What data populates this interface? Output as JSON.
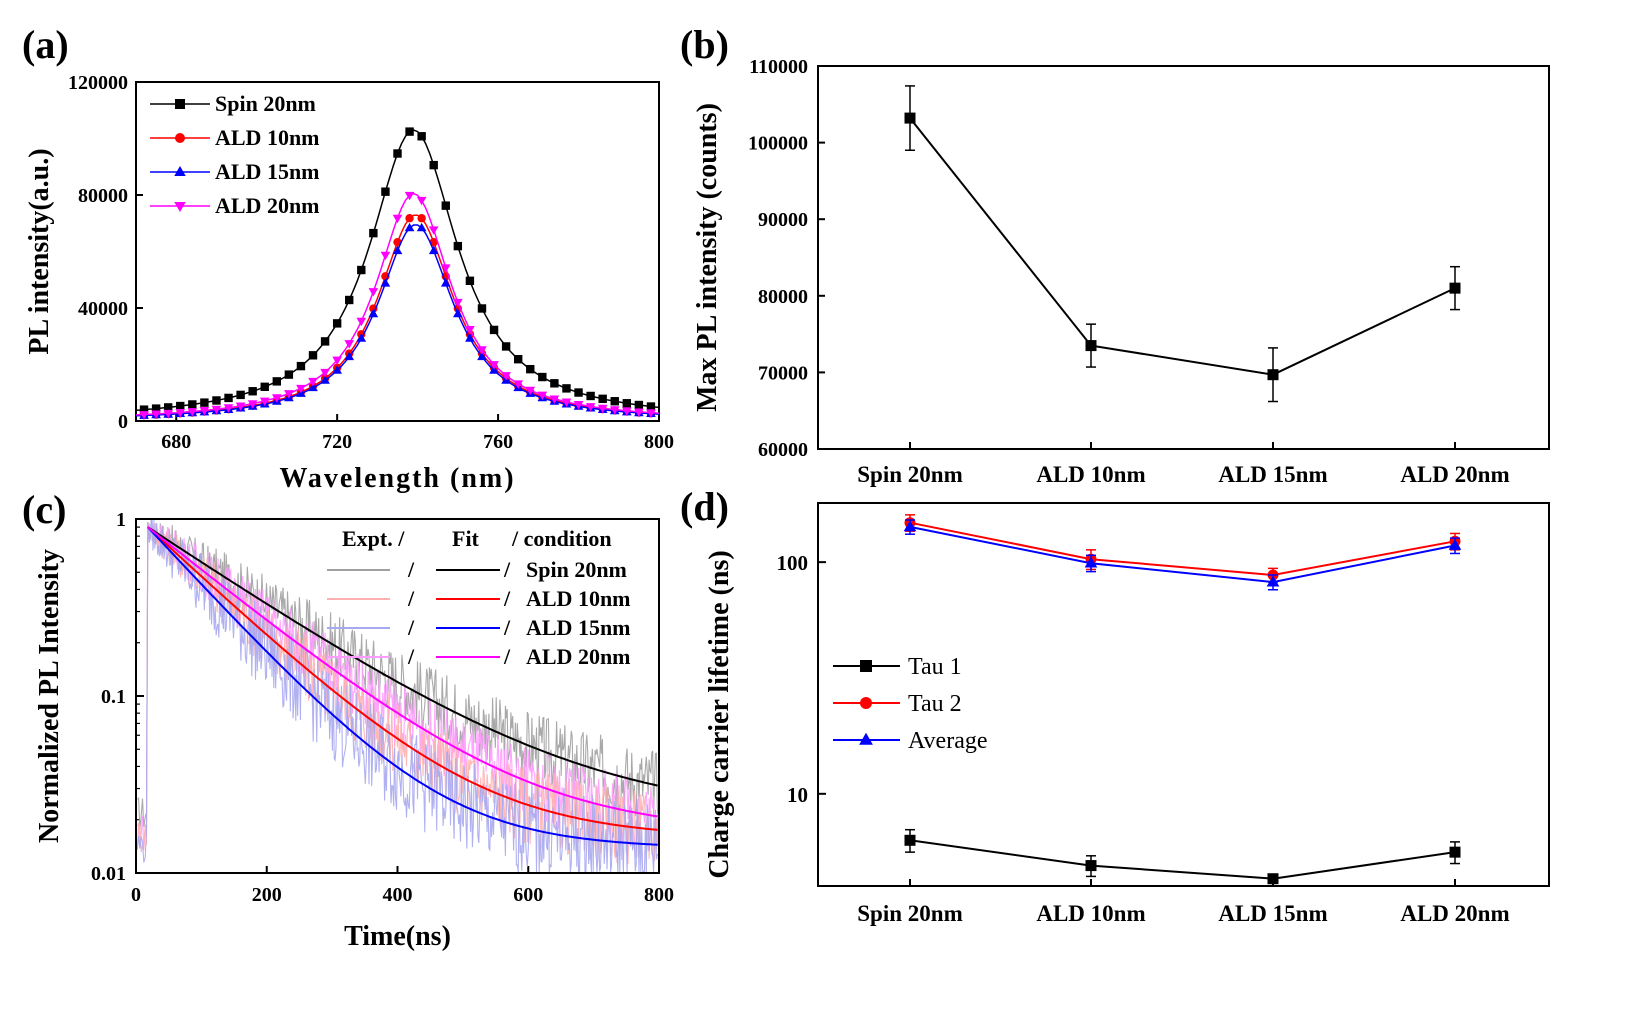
{
  "panel_labels": [
    "(a)",
    "(b)",
    "(c)",
    "(d)"
  ],
  "chart_data": [
    {
      "id": "a",
      "type": "line",
      "xlabel": "Wavelength (nm)",
      "ylabel": "PL intensity(a.u.)",
      "xlim": [
        670,
        800
      ],
      "ylim": [
        0,
        120000
      ],
      "xticks": [
        680,
        720,
        760,
        800
      ],
      "yticks": [
        0,
        40000,
        80000,
        120000
      ],
      "legend_position": "top-left",
      "series": [
        {
          "name": "Spin 20nm",
          "marker": "square",
          "color": "#000000",
          "peak_x": 739,
          "peak_y": 103000,
          "width": 13.5,
          "baseline": 0
        },
        {
          "name": "ALD 10nm",
          "marker": "circle",
          "color": "#ff0000",
          "peak_x": 739.5,
          "peak_y": 73000,
          "width": 11.5,
          "baseline": 0
        },
        {
          "name": "ALD 15nm",
          "marker": "triangle-up",
          "color": "#0000ff",
          "peak_x": 739.5,
          "peak_y": 69500,
          "width": 11.5,
          "baseline": 0
        },
        {
          "name": "ALD 20nm",
          "marker": "triangle-down",
          "color": "#ff00ff",
          "peak_x": 739,
          "peak_y": 80500,
          "width": 11.5,
          "baseline": 0
        }
      ]
    },
    {
      "id": "b",
      "type": "line",
      "xlabel": "",
      "ylabel": "Max PL intensity (counts)",
      "categories": [
        "Spin 20nm",
        "ALD 10nm",
        "ALD 15nm",
        "ALD 20nm"
      ],
      "ylim": [
        60000,
        110000
      ],
      "yticks": [
        60000,
        70000,
        80000,
        90000,
        100000,
        110000
      ],
      "series": [
        {
          "name": "",
          "marker": "square",
          "color": "#000000",
          "values": [
            103200,
            73500,
            69700,
            81000
          ],
          "errors": [
            4200,
            2800,
            3500,
            2800
          ]
        }
      ]
    },
    {
      "id": "c",
      "type": "line",
      "xlabel": "Time(ns)",
      "ylabel": "Normalized PL Intensity",
      "xlim": [
        0,
        800
      ],
      "ylim": [
        0.01,
        1
      ],
      "yscale": "log",
      "xticks": [
        0,
        200,
        400,
        600,
        800
      ],
      "yticks": [
        0.01,
        0.1,
        1
      ],
      "ytick_labels": [
        "0.01",
        "0.1",
        "1"
      ],
      "legend_header": [
        "Expt. /",
        "Fit",
        "/ condition"
      ],
      "legend_slash": "/",
      "legend_position": "top-right",
      "series": [
        {
          "name": "Spin 20nm",
          "fit_color": "#000000",
          "expt_color": "#a0a0a0",
          "floor": 0.021,
          "tau": 175,
          "noise": 0.14
        },
        {
          "name": "ALD 10nm",
          "fit_color": "#ff0000",
          "expt_color": "#ffb0b0",
          "floor": 0.0158,
          "tau": 125,
          "noise": 0.15
        },
        {
          "name": "ALD 15nm",
          "fit_color": "#0000ff",
          "expt_color": "#a8a8f0",
          "floor": 0.0138,
          "tau": 108,
          "noise": 0.18
        },
        {
          "name": "ALD 20nm",
          "fit_color": "#ff00ff",
          "expt_color": "#ff9cff",
          "floor": 0.0168,
          "tau": 145,
          "noise": 0.14
        }
      ]
    },
    {
      "id": "d",
      "type": "line",
      "xlabel": "",
      "ylabel": "Charge carrier lifetime (ns)",
      "yscale": "log",
      "ylim": [
        4,
        180
      ],
      "yticks": [
        10,
        100
      ],
      "ytick_labels": [
        "10",
        "100"
      ],
      "categories": [
        "Spin 20nm",
        "ALD 10nm",
        "ALD 15nm",
        "ALD 20nm"
      ],
      "legend_position": "middle-left",
      "series": [
        {
          "name": "Tau 1",
          "marker": "square",
          "color": "#000000",
          "values": [
            6.3,
            4.9,
            4.3,
            5.6
          ],
          "errors": [
            0.7,
            0.5,
            0.1,
            0.6
          ]
        },
        {
          "name": "Tau 2",
          "marker": "circle",
          "color": "#ff0000",
          "values": [
            148,
            103,
            88,
            123
          ],
          "errors": [
            12,
            10,
            6,
            10
          ]
        },
        {
          "name": "Average",
          "marker": "triangle-up",
          "color": "#0000ff",
          "values": [
            142,
            99,
            82,
            118
          ],
          "errors": [
            10,
            8,
            6,
            9
          ]
        }
      ]
    }
  ]
}
